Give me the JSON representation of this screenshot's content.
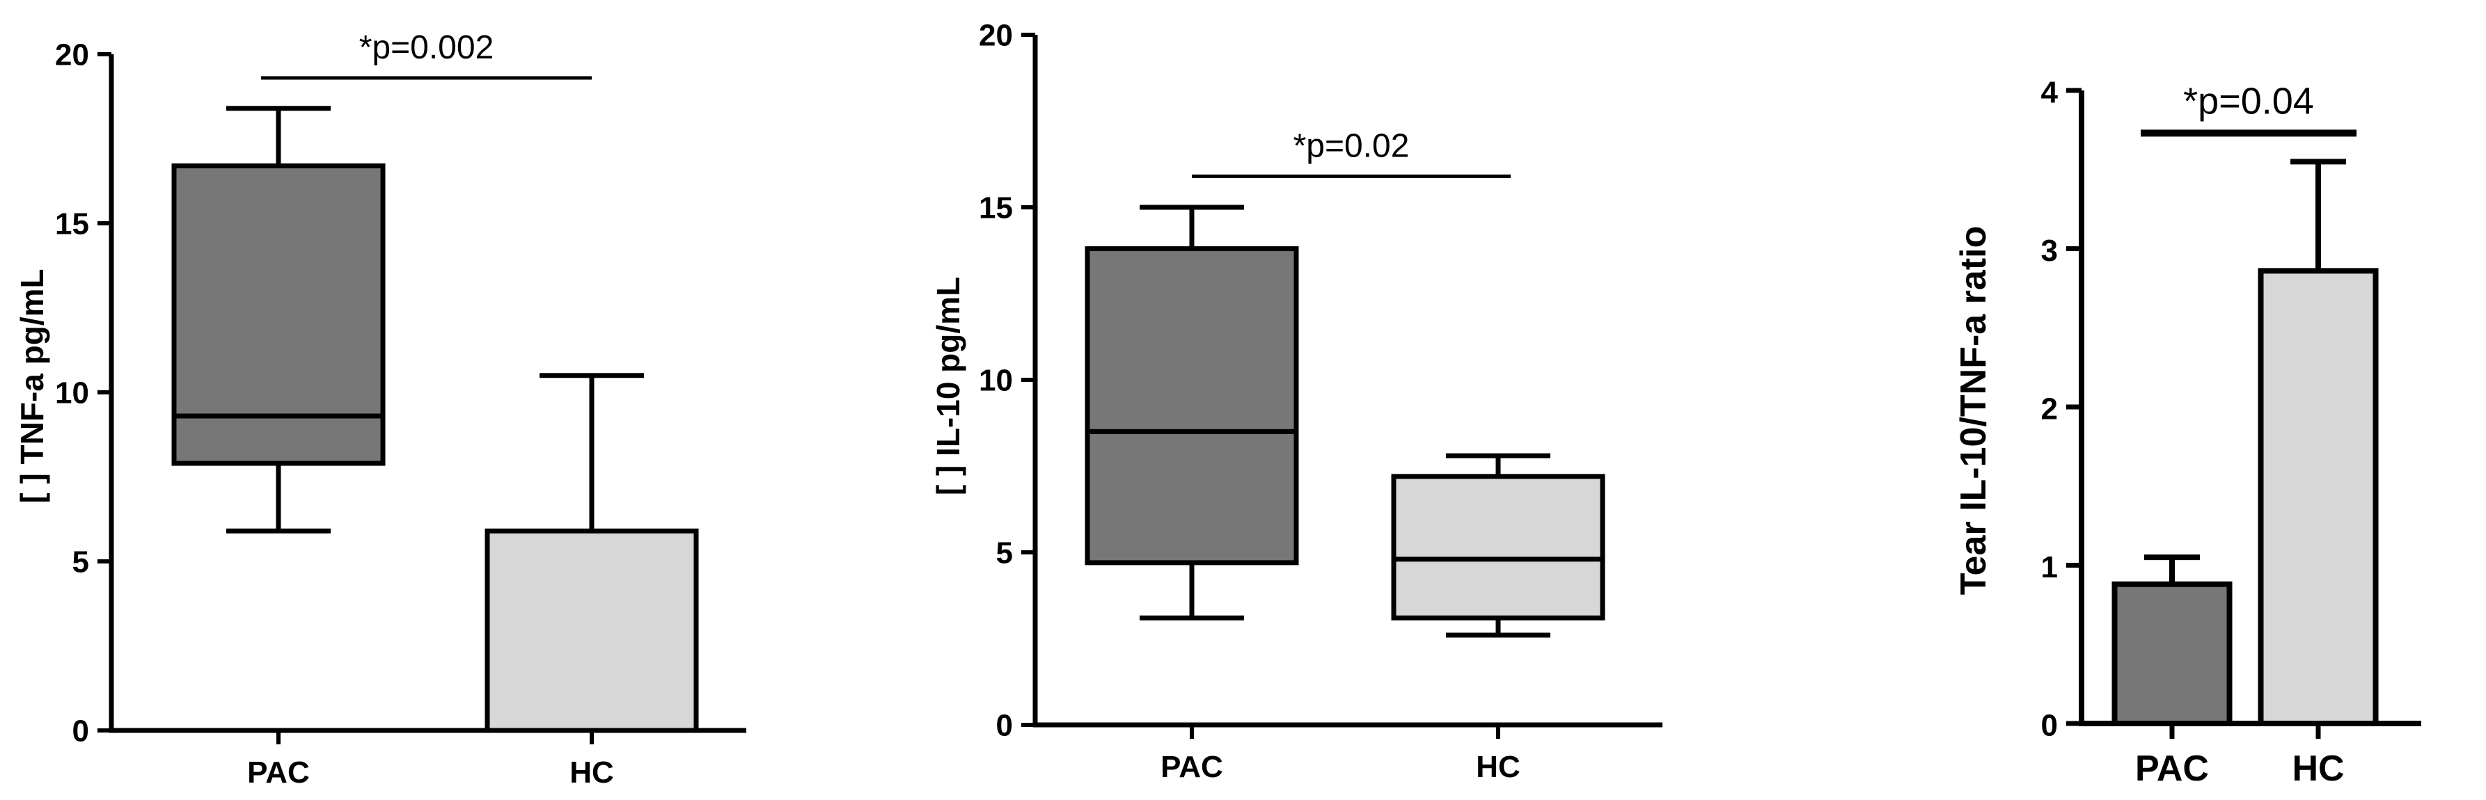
{
  "chart_data": [
    {
      "type": "box",
      "panel": "tnf",
      "ylabel": "[ ] TNF-a pg/mL",
      "xlabel": "",
      "ylim": [
        0,
        20
      ],
      "yticks": [
        "0",
        "5",
        "10",
        "15",
        "20"
      ],
      "categories": [
        "PAC",
        "HC"
      ],
      "boxes": [
        {
          "category": "PAC",
          "min": 5.9,
          "q1": 7.9,
          "median": 9.3,
          "q3": 16.7,
          "max": 18.4,
          "color": "#777777"
        },
        {
          "category": "HC",
          "min": 0,
          "q1": 0,
          "median": 0,
          "q3": 5.9,
          "max": 10.5,
          "color": "#d7d7d7"
        }
      ],
      "significance": {
        "label": "*p=0.002",
        "y": 19.3
      }
    },
    {
      "type": "box",
      "panel": "il10",
      "ylabel": "[ ] IL-10 pg/mL",
      "xlabel": "",
      "ylim": [
        0,
        20
      ],
      "yticks": [
        "0",
        "5",
        "10",
        "15",
        "20"
      ],
      "categories": [
        "PAC",
        "HC"
      ],
      "boxes": [
        {
          "category": "PAC",
          "min": 3.1,
          "q1": 4.7,
          "median": 8.5,
          "q3": 13.8,
          "max": 15.0,
          "color": "#777777"
        },
        {
          "category": "HC",
          "min": 2.6,
          "q1": 3.1,
          "median": 4.8,
          "q3": 7.2,
          "max": 7.8,
          "color": "#d7d7d7"
        }
      ],
      "significance": {
        "label": "*p=0.02",
        "y": 15.9
      }
    },
    {
      "type": "bar",
      "panel": "ratio",
      "ylabel": "Tear IL-10/TNF-a ratio",
      "xlabel": "",
      "ylim": [
        0,
        4
      ],
      "yticks": [
        "0",
        "1",
        "2",
        "3",
        "4"
      ],
      "categories": [
        "PAC",
        "HC"
      ],
      "values": [
        0.88,
        2.86
      ],
      "error_upper": [
        1.05,
        3.55
      ],
      "colors": [
        "#777777",
        "#d7d7d7"
      ],
      "significance": {
        "label": "*p=0.04",
        "y": 3.73
      }
    }
  ]
}
